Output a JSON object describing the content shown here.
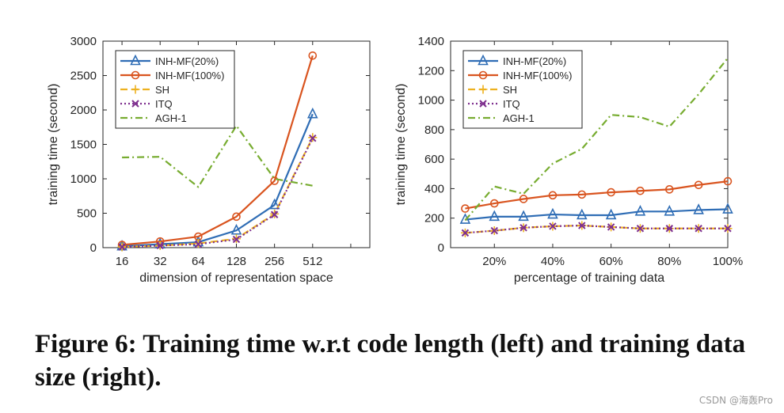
{
  "caption": "Figure 6: Training time w.r.t code length (left) and training data size (right).",
  "watermark": "CSDN @海轰Pro",
  "chart_data": [
    {
      "type": "line",
      "xlabel": "dimension of representation space",
      "ylabel": "training time (second)",
      "categories": [
        "16",
        "32",
        "64",
        "128",
        "256",
        "512"
      ],
      "ylim": [
        0,
        3000
      ],
      "yticks": [
        0,
        500,
        1000,
        1500,
        2000,
        2500,
        3000
      ],
      "legend_position": "top-left",
      "series": [
        {
          "name": "INH-MF(20%)",
          "color": "#2f6db5",
          "style": "solid",
          "marker": "triangle",
          "values": [
            20,
            50,
            80,
            250,
            620,
            1940
          ]
        },
        {
          "name": "INH-MF(100%)",
          "color": "#d9541f",
          "style": "solid",
          "marker": "circle",
          "values": [
            40,
            90,
            160,
            450,
            970,
            2790
          ]
        },
        {
          "name": "SH",
          "color": "#edb11f",
          "style": "dashed",
          "marker": "plus",
          "values": [
            10,
            30,
            60,
            130,
            490,
            1600
          ]
        },
        {
          "name": "ITQ",
          "color": "#7e2f8e",
          "style": "dotted",
          "marker": "x",
          "values": [
            10,
            30,
            50,
            120,
            480,
            1590
          ]
        },
        {
          "name": "AGH-1",
          "color": "#77ac30",
          "style": "dashdot",
          "marker": "none",
          "values": [
            1310,
            1320,
            880,
            1770,
            1000,
            900
          ]
        }
      ]
    },
    {
      "type": "line",
      "xlabel": "percentage of training data",
      "ylabel": "training time (second)",
      "x": [
        10,
        20,
        30,
        40,
        50,
        60,
        70,
        80,
        90,
        100
      ],
      "xlim": [
        5,
        100
      ],
      "xticks": [
        20,
        40,
        60,
        80,
        100
      ],
      "xticklabels": [
        "20%",
        "40%",
        "60%",
        "80%",
        "100%"
      ],
      "ylim": [
        0,
        1400
      ],
      "yticks": [
        0,
        200,
        400,
        600,
        800,
        1000,
        1200,
        1400
      ],
      "legend_position": "top-left",
      "series": [
        {
          "name": "INH-MF(20%)",
          "color": "#2f6db5",
          "style": "solid",
          "marker": "triangle",
          "values": [
            190,
            210,
            210,
            225,
            220,
            220,
            245,
            245,
            255,
            260
          ]
        },
        {
          "name": "INH-MF(100%)",
          "color": "#d9541f",
          "style": "solid",
          "marker": "circle",
          "values": [
            265,
            300,
            330,
            355,
            360,
            375,
            385,
            395,
            425,
            450
          ]
        },
        {
          "name": "SH",
          "color": "#edb11f",
          "style": "dashed",
          "marker": "plus",
          "values": [
            100,
            115,
            135,
            145,
            150,
            140,
            130,
            130,
            130,
            130
          ]
        },
        {
          "name": "ITQ",
          "color": "#7e2f8e",
          "style": "dotted",
          "marker": "x",
          "values": [
            100,
            115,
            135,
            145,
            150,
            140,
            130,
            130,
            130,
            130
          ]
        },
        {
          "name": "AGH-1",
          "color": "#77ac30",
          "style": "dashdot",
          "marker": "none",
          "values": [
            185,
            415,
            365,
            570,
            670,
            900,
            885,
            820,
            1040,
            1285
          ]
        }
      ]
    }
  ]
}
